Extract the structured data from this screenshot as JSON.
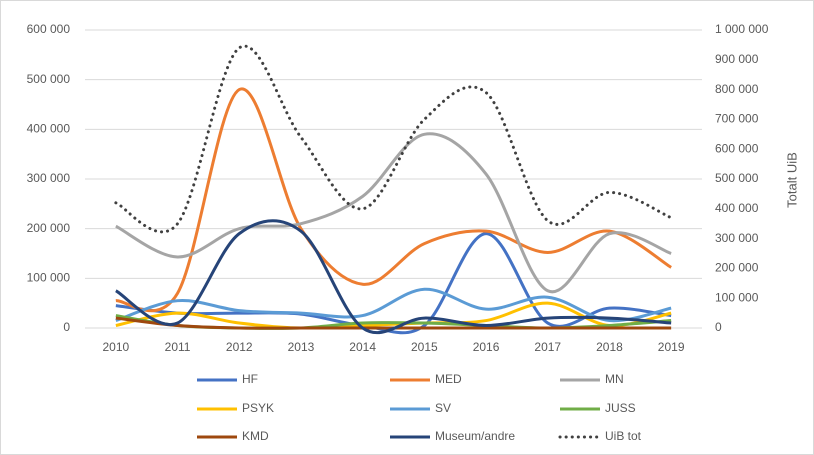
{
  "chart_data": {
    "type": "line",
    "smooth": true,
    "y2label": "Totalt UiB",
    "categories": [
      "2010",
      "2011",
      "2012",
      "2013",
      "2014",
      "2015",
      "2016",
      "2017",
      "2018",
      "2019"
    ],
    "series": [
      {
        "name": "HF",
        "color": "#4472c4",
        "values": [
          45000,
          30000,
          30000,
          28000,
          5000,
          5000,
          190000,
          10000,
          40000,
          25000
        ]
      },
      {
        "name": "MED",
        "color": "#ed7d31",
        "values": [
          55000,
          70000,
          480000,
          200000,
          88000,
          170000,
          195000,
          152000,
          195000,
          122000
        ]
      },
      {
        "name": "MN",
        "color": "#a5a5a5",
        "values": [
          205000,
          143000,
          200000,
          210000,
          265000,
          390000,
          310000,
          75000,
          190000,
          150000
        ]
      },
      {
        "name": "PSYK",
        "color": "#ffc000",
        "values": [
          5000,
          30000,
          10000,
          0,
          5000,
          10000,
          15000,
          50000,
          5000,
          30000
        ]
      },
      {
        "name": "SV",
        "color": "#5b9bd5",
        "values": [
          15000,
          55000,
          35000,
          30000,
          25000,
          78000,
          38000,
          62000,
          15000,
          40000
        ]
      },
      {
        "name": "JUSS",
        "color": "#70ad47",
        "values": [
          25000,
          5000,
          0,
          0,
          10000,
          10000,
          5000,
          0,
          5000,
          15000
        ]
      },
      {
        "name": "KMD",
        "color": "#9e480e",
        "values": [
          20000,
          5000,
          0,
          0,
          0,
          0,
          0,
          0,
          0,
          0
        ]
      },
      {
        "name": "Museum/andre",
        "color": "#264478",
        "values": [
          75000,
          10000,
          190000,
          195000,
          0,
          20000,
          5000,
          20000,
          20000,
          10000
        ]
      },
      {
        "name": "UiB tot",
        "color": "#404040",
        "dotted": true,
        "axis": "y2",
        "values": [
          420000,
          350000,
          940000,
          640000,
          400000,
          700000,
          790000,
          360000,
          455000,
          370000
        ]
      }
    ],
    "ylim": [
      0,
      600000
    ],
    "yticks": [
      0,
      {
        "value": 100000,
        "label": "100 000"
      },
      {
        "value": 200000,
        "label": "200 000"
      },
      {
        "value": 300000,
        "label": "300 000"
      },
      {
        "value": 400000,
        "label": "400 000"
      },
      {
        "value": 500000,
        "label": "500 000"
      },
      {
        "value": 600000,
        "label": "600 000"
      }
    ],
    "y2lim": [
      0,
      1000000
    ],
    "y2ticks": [
      0,
      {
        "value": 100000,
        "label": "100 000"
      },
      {
        "value": 200000,
        "label": "200 000"
      },
      {
        "value": 300000,
        "label": "300 000"
      },
      {
        "value": 400000,
        "label": "400 000"
      },
      {
        "value": 500000,
        "label": "500 000"
      },
      {
        "value": 600000,
        "label": "600 000"
      },
      {
        "value": 700000,
        "label": "700 000"
      },
      {
        "value": 800000,
        "label": "800 000"
      },
      {
        "value": 900000,
        "label": "900 000"
      },
      {
        "value": 1000000,
        "label": "1 000 000"
      }
    ],
    "grid": true,
    "legend": "bottom"
  }
}
